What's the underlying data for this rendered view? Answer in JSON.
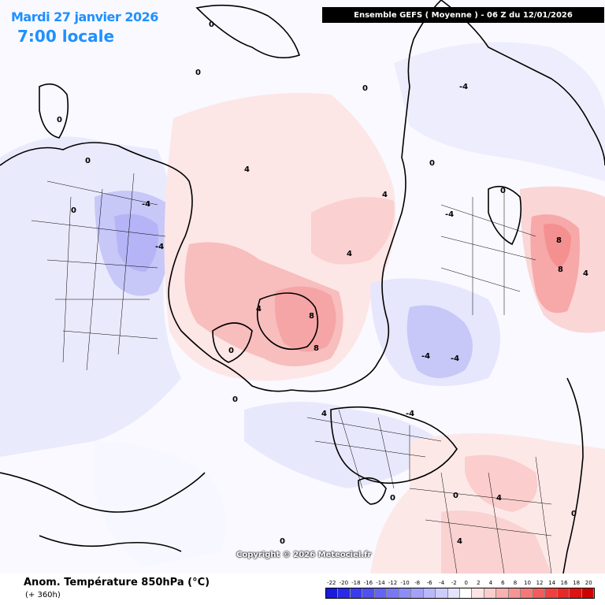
{
  "header": {
    "date": "Mardi 27 janvier 2026",
    "local_time": "7:00 locale",
    "run": "Ensemble GEFS  ( Moyenne )  -  06 Z du 12/01/2026"
  },
  "footer": {
    "variable": "Anom. Température 850hPa (°C)",
    "lead_time": "(+ 360h)",
    "copyright": "Copyright © 2026 Meteociel.fr"
  },
  "legend": {
    "labels": [
      "-22",
      "-20",
      "-18",
      "-16",
      "-14",
      "-12",
      "-10",
      "-8",
      "-6",
      "-4",
      "-2",
      "0",
      "2",
      "4",
      "6",
      "8",
      "10",
      "12",
      "14",
      "16",
      "18",
      "20"
    ],
    "colors": [
      "#1a1adb",
      "#2a2ae6",
      "#3b3bee",
      "#4f4ff2",
      "#6464f4",
      "#7878f6",
      "#8d8df7",
      "#a2a2f9",
      "#b8b8fa",
      "#cdcdfb",
      "#e3e3fd",
      "#ffffff",
      "#fde3e3",
      "#fbcdcd",
      "#f9b0b0",
      "#f79494",
      "#f57878",
      "#f25c5c",
      "#ee4040",
      "#e62a2a",
      "#dd1414",
      "#d00000"
    ]
  },
  "contour_labels": {
    "zero": "0",
    "four": "4",
    "minus_four": "-4",
    "eight": "8"
  }
}
